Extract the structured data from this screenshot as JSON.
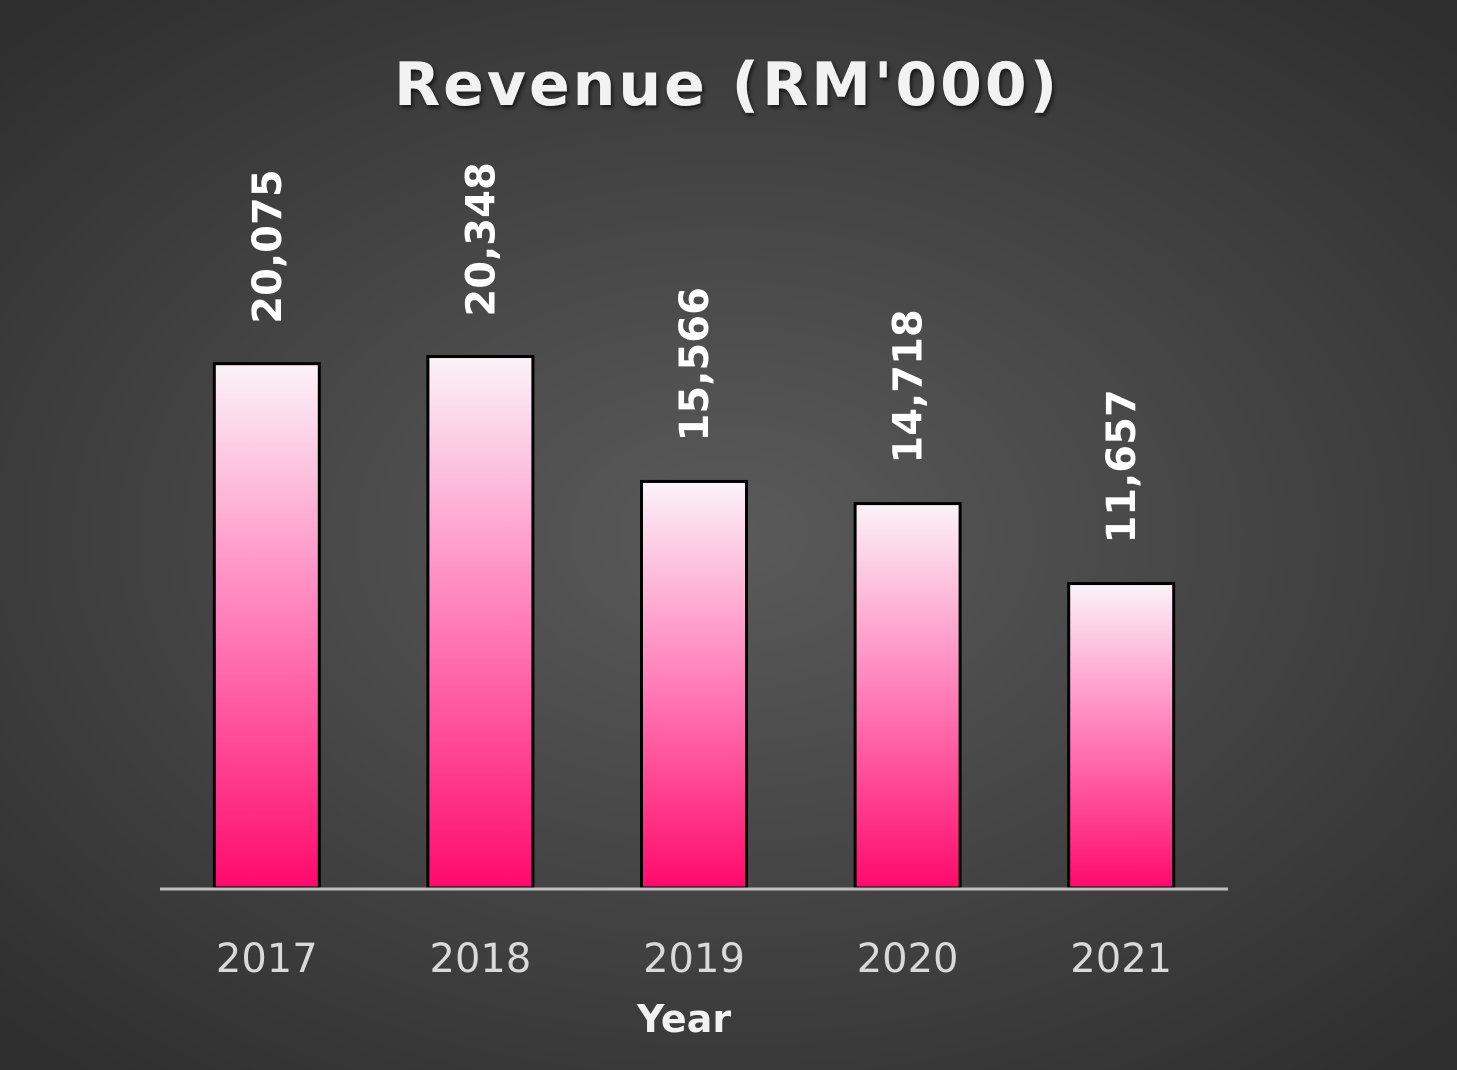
{
  "chart_data": {
    "type": "bar",
    "title": "Revenue (RM'000)",
    "xlabel": "Year",
    "ylabel": "",
    "categories": [
      "2017",
      "2018",
      "2019",
      "2020",
      "2021"
    ],
    "values": [
      20075,
      20348,
      15566,
      14718,
      11657
    ],
    "data_labels": [
      "20,075",
      "20,348",
      "15,566",
      "14,718",
      "11,657"
    ],
    "ylim": [
      0,
      34000
    ],
    "grid": false,
    "legend": "none",
    "colors": {
      "bar_top": "#fbf3f8",
      "bar_mid": "#ff88bf",
      "bar_bottom": "#ff0a6c",
      "bar_outline": "#000000",
      "axis_line": "#bfbfbf",
      "background_center": "#5a5a5a",
      "background_edge": "#2f2f2f"
    }
  }
}
